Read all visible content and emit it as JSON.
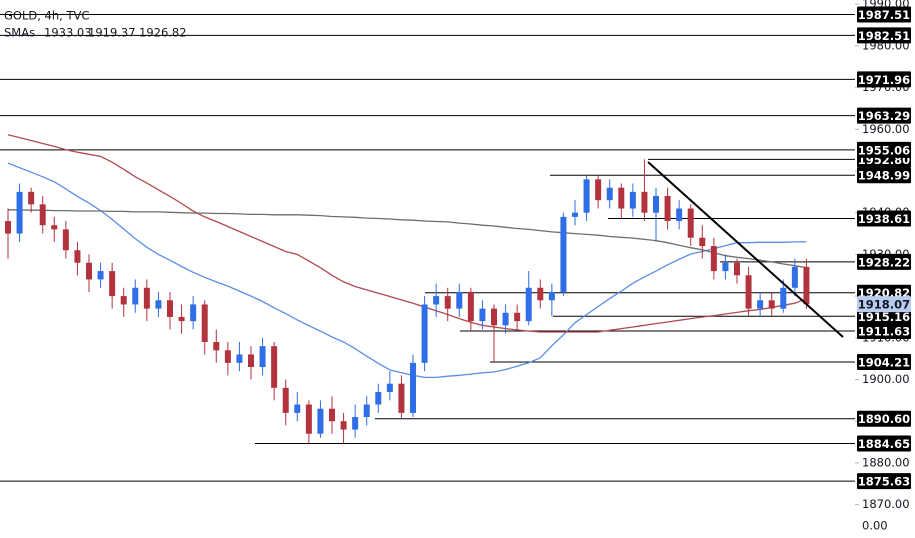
{
  "chart_data": {
    "type": "candlestick",
    "title": "GOLD, 4h, TVC",
    "sma_label": "SMAs",
    "bottom_label": "0.00",
    "up_color": "#2e6ee6",
    "down_color": "#b2333e",
    "ylim": [
      1862,
      1991
    ],
    "yticks": [
      {
        "value": 1870,
        "label": "1870.00"
      },
      {
        "value": 1880,
        "label": "1880.00"
      },
      {
        "value": 1890,
        "label": "1890.00"
      },
      {
        "value": 1900,
        "label": "1900.00"
      },
      {
        "value": 1910,
        "label": "1910.00"
      },
      {
        "value": 1920,
        "label": "1920.00"
      },
      {
        "value": 1930,
        "label": "1930.00"
      },
      {
        "value": 1940,
        "label": "1940.00"
      },
      {
        "value": 1950,
        "label": "1950.00"
      },
      {
        "value": 1960,
        "label": "1960.00"
      },
      {
        "value": 1970,
        "label": "1970.00"
      },
      {
        "value": 1980,
        "label": "1980.00"
      },
      {
        "value": 1990,
        "label": "1990.00"
      }
    ],
    "open": [
      1938,
      1935,
      1945,
      1942,
      1937,
      1936,
      1931,
      1928,
      1924,
      1926,
      1920,
      1918,
      1922,
      1917,
      1919,
      1915,
      1914,
      1918,
      1909,
      1907,
      1904,
      1906,
      1903,
      1908,
      1898,
      1892,
      1894,
      1887,
      1893,
      1890,
      1888,
      1891,
      1894,
      1897,
      1899,
      1892,
      1904,
      1918,
      1920,
      1917,
      1921,
      1914,
      1917,
      1913,
      1916,
      1914,
      1922,
      1919,
      1921,
      1939,
      1940,
      1948,
      1943,
      1946,
      1941,
      1945,
      1940,
      1944,
      1938,
      1941,
      1934,
      1932,
      1926,
      1928,
      1925,
      1917,
      1919,
      1917,
      1922,
      1927
    ],
    "high": [
      1941,
      1947,
      1946,
      1944,
      1939,
      1938,
      1933,
      1930,
      1928,
      1928,
      1922,
      1924,
      1924,
      1921,
      1921,
      1918,
      1920,
      1919,
      1912,
      1909,
      1909,
      1908,
      1910,
      1909,
      1900,
      1897,
      1895,
      1895,
      1896,
      1892,
      1894,
      1896,
      1899,
      1902,
      1901,
      1906,
      1920,
      1923,
      1922,
      1923,
      1922,
      1919,
      1918,
      1918,
      1918,
      1926,
      1924,
      1923,
      1940,
      1943,
      1949,
      1949,
      1948,
      1947,
      1947,
      1952.8,
      1946,
      1946,
      1943,
      1942,
      1937,
      1934,
      1930,
      1929,
      1927,
      1921,
      1921,
      1924,
      1929,
      1929
    ],
    "low": [
      1929,
      1933,
      1940,
      1935,
      1933,
      1929,
      1925,
      1921,
      1922,
      1917,
      1915,
      1916,
      1914,
      1915,
      1912,
      1911,
      1912,
      1906,
      1904,
      1901,
      1902,
      1900,
      1901,
      1895,
      1889,
      1890,
      1884.65,
      1886,
      1887,
      1884.65,
      1886,
      1889,
      1892,
      1895,
      1890.6,
      1891,
      1902,
      1915,
      1914,
      1915,
      1911.6,
      1912,
      1904.21,
      1911,
      1912,
      1913,
      1917,
      1915.16,
      1920,
      1937,
      1938,
      1941,
      1941,
      1938.61,
      1939,
      1938,
      1933,
      1936,
      1936,
      1932,
      1929,
      1924,
      1924,
      1923,
      1915,
      1915,
      1915,
      1916,
      1920,
      1917
    ],
    "close": [
      1935,
      1945,
      1942,
      1937,
      1936,
      1931,
      1928,
      1924,
      1926,
      1920,
      1918,
      1922,
      1917,
      1919,
      1915,
      1914,
      1918,
      1909,
      1907,
      1904,
      1906,
      1903,
      1908,
      1898,
      1892,
      1894,
      1887,
      1893,
      1890,
      1888,
      1891,
      1894,
      1897,
      1899,
      1892,
      1904,
      1918,
      1920,
      1917,
      1921,
      1914,
      1917,
      1913,
      1916,
      1914,
      1922,
      1919,
      1921,
      1939,
      1940,
      1948,
      1943,
      1946,
      1941,
      1945,
      1940,
      1944,
      1938,
      1941,
      1934,
      1932,
      1926,
      1928,
      1925,
      1917,
      1919,
      1917,
      1922,
      1927,
      1918.07
    ],
    "series": [
      {
        "color": "#5b8ee6",
        "values": [
          1951.9,
          1950.8,
          1949.7,
          1948.6,
          1947.4,
          1945.7,
          1943.9,
          1942.3,
          1940.5,
          1938.4,
          1936.1,
          1933.8,
          1931.7,
          1930,
          1928.6,
          1927.1,
          1925.7,
          1924.5,
          1923.4,
          1922.4,
          1921.2,
          1920,
          1918.7,
          1917.2,
          1915.8,
          1914.3,
          1912.9,
          1911.6,
          1910.2,
          1909,
          1907.4,
          1905.6,
          1903.9,
          1902.3,
          1901.6,
          1901,
          1900.5,
          1900.5,
          1900.8,
          1901,
          1901.3,
          1901.6,
          1901.8,
          1902.4,
          1903.2,
          1904,
          1905.2,
          1908.1,
          1910.7,
          1913.6,
          1915.6,
          1917.5,
          1919.4,
          1921.2,
          1923.1,
          1924.6,
          1926,
          1927.5,
          1928.8,
          1930.1,
          1930.7,
          1931.4,
          1932.1,
          1932.8,
          1932.8,
          1932.9,
          1932.9,
          1932.9,
          1933,
          1933.03
        ]
      },
      {
        "color": "#b24a4f",
        "values": [
          1958.7,
          1958,
          1957.3,
          1956.6,
          1955.9,
          1955.1,
          1954.5,
          1954,
          1953.5,
          1952.1,
          1950.4,
          1948.6,
          1947.1,
          1945.5,
          1943.9,
          1942.2,
          1940.4,
          1939,
          1937.9,
          1936.7,
          1935.5,
          1934.3,
          1933.1,
          1931.9,
          1930.7,
          1930,
          1928.4,
          1926.8,
          1925,
          1923.4,
          1922.3,
          1921.5,
          1920.7,
          1919.9,
          1919.1,
          1918.3,
          1917.4,
          1916.5,
          1915.6,
          1914.6,
          1913.7,
          1913,
          1912.6,
          1912.2,
          1911.9,
          1911.6,
          1911.4,
          1911.4,
          1911.4,
          1911.4,
          1911.4,
          1911.4,
          1911.8,
          1912.2,
          1912.6,
          1913,
          1913.4,
          1913.8,
          1914.2,
          1914.6,
          1915,
          1915.3,
          1915.7,
          1916.1,
          1916.5,
          1916.8,
          1917.3,
          1917.8,
          1918.3,
          1919.37
        ]
      },
      {
        "color": "#6e6e6e",
        "values": [
          1940.7,
          1940.7,
          1940.6,
          1940.6,
          1940.5,
          1940.5,
          1940.4,
          1940.4,
          1940.4,
          1940.3,
          1940.3,
          1940.2,
          1940.2,
          1940.2,
          1940.1,
          1940,
          1939.9,
          1939.9,
          1939.8,
          1939.8,
          1939.7,
          1939.6,
          1939.6,
          1939.5,
          1939.5,
          1939.5,
          1939.4,
          1939.3,
          1939.1,
          1939,
          1938.9,
          1938.7,
          1938.6,
          1938.5,
          1938.3,
          1938.2,
          1938,
          1937.9,
          1937.8,
          1937.5,
          1937.3,
          1937,
          1936.8,
          1936.5,
          1936.2,
          1936,
          1935.7,
          1935.4,
          1935.2,
          1935,
          1934.8,
          1934.6,
          1934.3,
          1934.1,
          1933.9,
          1933.6,
          1933.3,
          1932.8,
          1932.2,
          1931.6,
          1931.1,
          1930.4,
          1929.7,
          1929.3,
          1929,
          1928.6,
          1928.2,
          1927.7,
          1927.3,
          1926.82
        ]
      }
    ],
    "levels": [
      1987.51,
      1982.51,
      1971.96,
      1963.29,
      {
        "value": 1952.8,
        "label": "1952.80"
      },
      1955.06,
      1948.99,
      1938.61,
      1928.22,
      1920.82,
      1915.16,
      1911.63,
      1904.21,
      {
        "value": 1890.6,
        "label": "1890.60"
      },
      1884.65,
      1875.63
    ]
  }
}
